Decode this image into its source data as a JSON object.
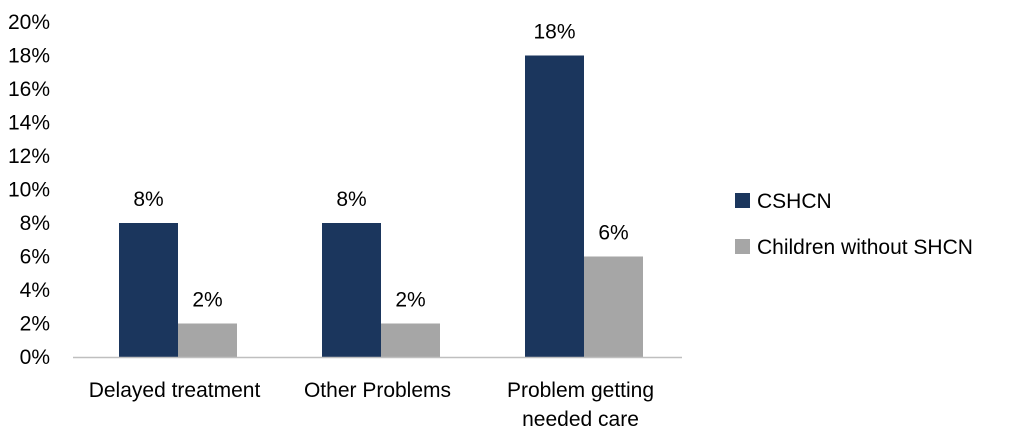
{
  "chart_data": {
    "type": "bar",
    "categories": [
      [
        "Delayed treatment"
      ],
      [
        "Other Problems"
      ],
      [
        "Problem getting",
        "needed care"
      ]
    ],
    "series": [
      {
        "name": "CSHCN",
        "color": "#1b365d",
        "values": [
          8,
          8,
          18
        ],
        "labels": [
          "8%",
          "8%",
          "18%"
        ]
      },
      {
        "name": "Children without SHCN",
        "color": "#a6a6a6",
        "values": [
          2,
          2,
          6
        ],
        "labels": [
          "2%",
          "2%",
          "6%"
        ]
      }
    ],
    "ylim": [
      0,
      20
    ],
    "y_ticks": [
      0,
      2,
      4,
      6,
      8,
      10,
      12,
      14,
      16,
      18,
      20
    ],
    "y_tick_labels": [
      "0%",
      "2%",
      "4%",
      "6%",
      "8%",
      "10%",
      "12%",
      "14%",
      "16%",
      "18%",
      "20%"
    ],
    "grid": false,
    "legend_position": "right",
    "axis_color": "#bfbfbf"
  }
}
